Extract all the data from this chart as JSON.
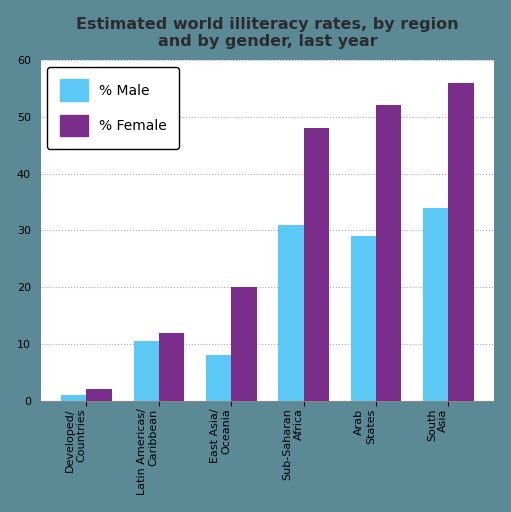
{
  "title": "Estimated world illiteracy rates, by region\nand by gender, last year",
  "categories": [
    "Developed/\nCountries",
    "Latin Americas/\nCaribbean",
    "East Asia/\nOceania",
    "Sub-Saharan\nAfrica",
    "Arab\nStates",
    "South\nAsia"
  ],
  "male_values": [
    1,
    10.5,
    8,
    31,
    29,
    34
  ],
  "female_values": [
    2,
    12,
    20,
    48,
    52,
    56
  ],
  "male_color": "#5BC8F5",
  "female_color": "#7B2D8B",
  "outer_bg_color": "#5B8A96",
  "plot_bg_color": "#FFFFFF",
  "inner_bg_color": "#E8E8E8",
  "ylim": [
    0,
    60
  ],
  "yticks": [
    0,
    10,
    20,
    30,
    40,
    50,
    60
  ],
  "bar_width": 0.35,
  "title_fontsize": 11.5,
  "tick_fontsize": 8,
  "legend_fontsize": 10,
  "title_color": "#2C2C2C"
}
